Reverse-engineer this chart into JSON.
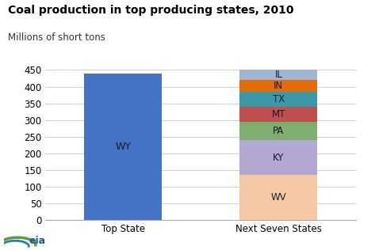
{
  "title": "Coal production in top producing states, 2010",
  "subtitle": "Millions of short tons",
  "categories": [
    "Top State",
    "Next Seven States"
  ],
  "wy_value": 440,
  "stacked_states": [
    "WV",
    "KY",
    "PA",
    "MT",
    "TX",
    "IN",
    "IL"
  ],
  "stacked_values": [
    135,
    105,
    55,
    45,
    45,
    35,
    30
  ],
  "stacked_colors": [
    "#f5c9a3",
    "#b3a8d1",
    "#7db06e",
    "#c0504d",
    "#3b9aa8",
    "#e36c09",
    "#9eb6d4"
  ],
  "wy_color": "#4472c4",
  "ylim": [
    0,
    450
  ],
  "yticks": [
    0,
    50,
    100,
    150,
    200,
    250,
    300,
    350,
    400,
    450
  ],
  "background_color": "#ffffff",
  "grid_color": "#d0d0d0",
  "title_fontsize": 10,
  "subtitle_fontsize": 8.5,
  "tick_fontsize": 8.5,
  "label_fontsize": 9
}
